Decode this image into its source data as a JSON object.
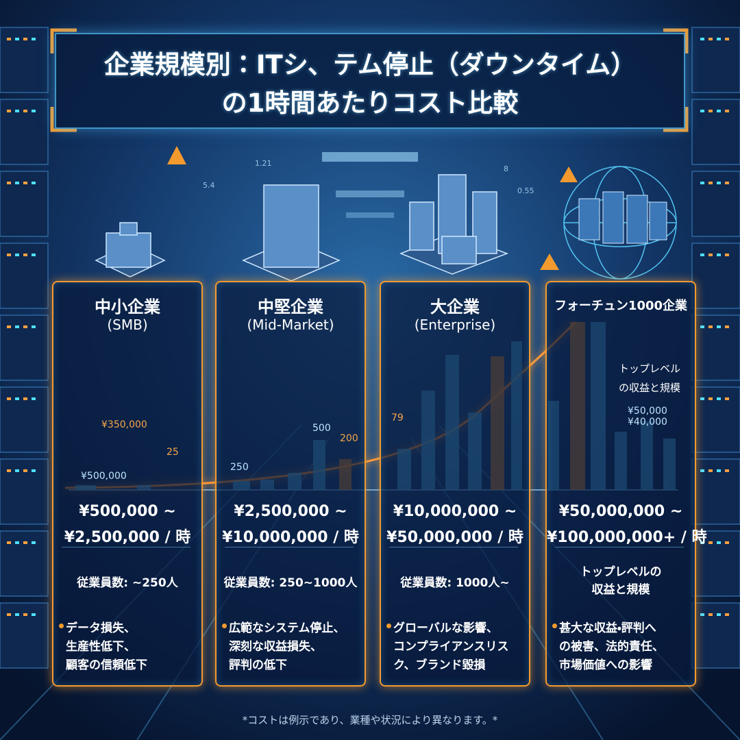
{
  "header": {
    "title_lines": [
      "企業規模別：ITシ、テム停止（ダウンタイム）",
      "の1時間あたりコスト比較"
    ]
  },
  "background_labels": [
    "1.21",
    "0.55",
    "5.4",
    "8"
  ],
  "columns": [
    {
      "name": "中小企業",
      "subtitle": "(SMB)",
      "chart_labels": [
        "¥350,000",
        "25",
        "¥500,000"
      ],
      "cost_lines": [
        "¥500,000 ~",
        "¥2,500,000 / 時"
      ],
      "employees": [
        "従業員数: ~250人"
      ],
      "impacts": [
        "データ損失、",
        "生産性低下、",
        "顧客の信頼低下"
      ]
    },
    {
      "name": "中堅企業",
      "subtitle": "(Mid-Market)",
      "chart_labels": [
        "500",
        "200",
        "250"
      ],
      "cost_lines": [
        "¥2,500,000 ~",
        "¥10,000,000 / 時"
      ],
      "employees": [
        "従業員数: 250~1000人"
      ],
      "impacts": [
        "広範なシステム停止、",
        "深刻な収益損失、",
        "評判の低下"
      ]
    },
    {
      "name": "大企業",
      "subtitle": "(Enterprise)",
      "chart_labels": [
        "79"
      ],
      "cost_lines": [
        "¥10,000,000 ~",
        "¥50,000,000 / 時"
      ],
      "employees": [
        "従業員数: 1000人~"
      ],
      "impacts": [
        "グローバルな影響、",
        "コンプライアンスリス",
        "ク、ブランド毀損"
      ]
    },
    {
      "name": "フォーチュン1000企業",
      "chart_labels": [
        "トップレベル",
        "の収益と規模",
        "¥50,000",
        "¥40,000"
      ],
      "cost_lines": [
        "¥50,000,000 ~",
        "¥100,000,000+ / 時"
      ],
      "employees": [
        "トップレベルの",
        "収益と規模"
      ],
      "impacts": [
        "甚大な収益・評判へ",
        "の被害、法的責任、",
        "市場価値への影響"
      ]
    }
  ],
  "footnote": "*コストは例示であり、業種や状況により異なります。*"
}
